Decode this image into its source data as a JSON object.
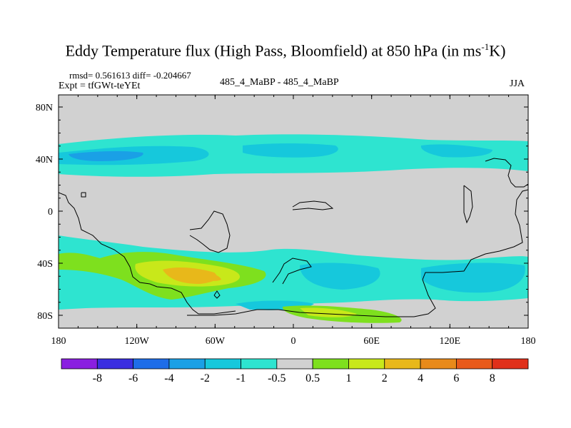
{
  "title": {
    "main": "Eddy Temperature flux (High Pass, Bloomfield) at 850 hPa (in ms",
    "superscript": "-1",
    "suffix": "K)"
  },
  "header": {
    "stats": "rmsd= 0.561613 diff= -0.204667",
    "expt": "Expt = tfGWt-teYEt",
    "comparison": "485_4_MaBP - 485_4_MaBP",
    "season": "JJA"
  },
  "axes": {
    "x_ticks": [
      "180",
      "120W",
      "60W",
      "0",
      "60E",
      "120E",
      "180"
    ],
    "y_ticks": [
      "80N",
      "40N",
      "0",
      "40S",
      "80S"
    ]
  },
  "colorbar": {
    "labels": [
      "-8",
      "-6",
      "-4",
      "-2",
      "-1",
      "-0.5",
      "0.5",
      "1",
      "2",
      "4",
      "6",
      "8"
    ],
    "colors": [
      "#8a1fe0",
      "#3a2ee0",
      "#1e6de8",
      "#1aa0e6",
      "#16c8dc",
      "#2ee4d0",
      "#d1d1d1",
      "#7ee01e",
      "#c8e81a",
      "#e8b81a",
      "#e88a1a",
      "#e85a1a",
      "#e0301a"
    ]
  },
  "colors": {
    "background_field": "#d1d1d1",
    "coastline": "#000000"
  }
}
